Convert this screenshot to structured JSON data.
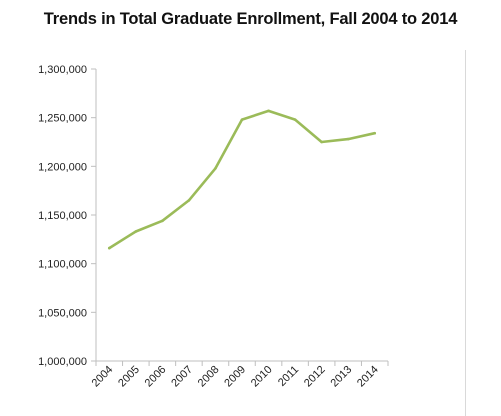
{
  "chart_data": {
    "type": "line",
    "title": "Trends in Total Graduate Enrollment, Fall 2004 to 2014",
    "xlabel": "",
    "ylabel": "",
    "categories": [
      "2004",
      "2005",
      "2006",
      "2007",
      "2008",
      "2009",
      "2010",
      "2011",
      "2012",
      "2013",
      "2014"
    ],
    "y_ticks": [
      "1,000,000",
      "1,050,000",
      "1,100,000",
      "1,150,000",
      "1,200,000",
      "1,250,000",
      "1,300,000"
    ],
    "y_tick_values": [
      1000000,
      1050000,
      1100000,
      1150000,
      1200000,
      1250000,
      1300000
    ],
    "ylim": [
      1000000,
      1300000
    ],
    "grid": false,
    "legend": "none",
    "series": [
      {
        "values": [
          1116000,
          1133000,
          1144000,
          1165000,
          1198000,
          1248000,
          1257000,
          1248000,
          1225000,
          1228000,
          1234000
        ],
        "color": "#9bbb59"
      }
    ]
  },
  "colors": {
    "line": "#9bbb59",
    "axis": "#bfbfbf",
    "text": "#222222"
  }
}
